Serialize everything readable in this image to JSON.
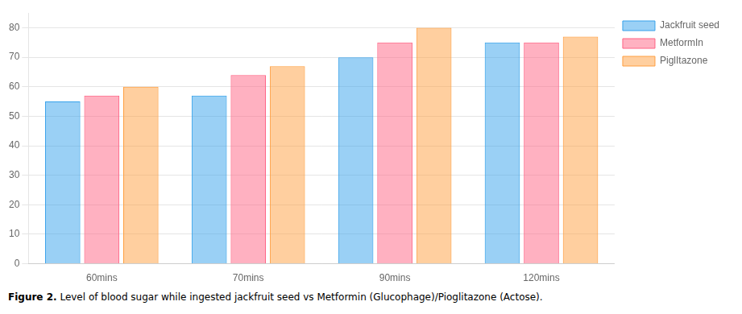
{
  "chart_data": {
    "type": "bar",
    "categories": [
      "60mins",
      "70mins",
      "90mins",
      "120mins"
    ],
    "series": [
      {
        "name": "Jackfruit seed",
        "values": [
          55,
          57,
          70,
          75
        ]
      },
      {
        "name": "MetformIn",
        "values": [
          57,
          64,
          75,
          75
        ]
      },
      {
        "name": "PiglItazone",
        "values": [
          60,
          67,
          80,
          77
        ]
      }
    ],
    "ylim": [
      0,
      85
    ],
    "yticks": [
      0,
      10,
      20,
      30,
      40,
      50,
      60,
      70,
      80
    ],
    "grid": "y",
    "legend": "right",
    "annotations": [
      "Figure 2.",
      "Level of blood sugar while ingested jackfruit seed vs Metformin (Glucophage)/Pioglitazone (Actose)."
    ]
  }
}
